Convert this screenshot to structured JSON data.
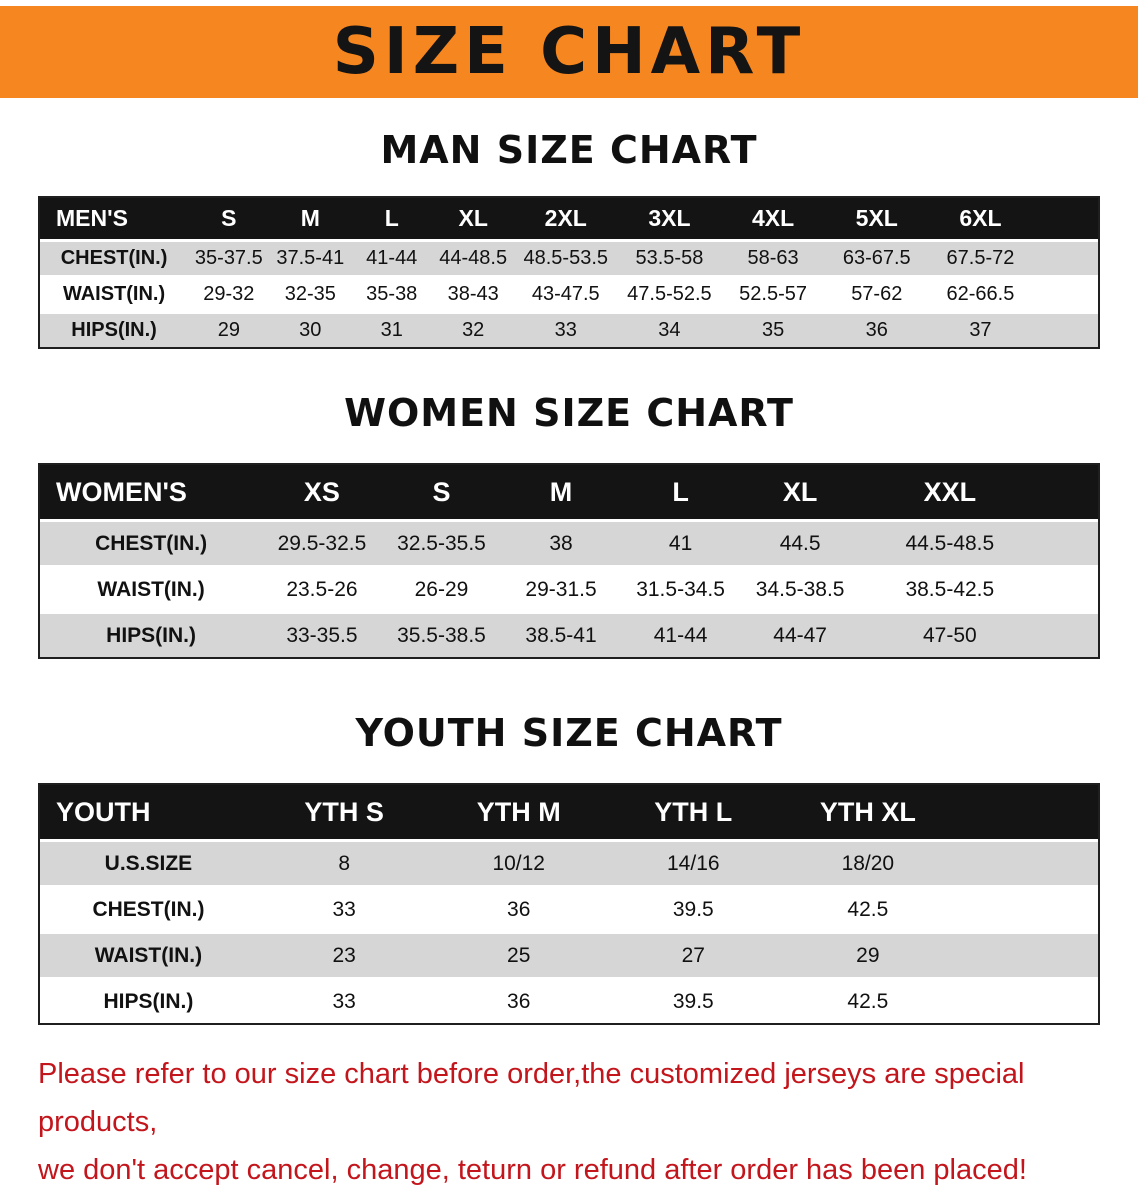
{
  "banner": {
    "title": "SIZE CHART"
  },
  "colors": {
    "banner_orange": "#f6861f",
    "table_header_black": "#141414",
    "row_gray": "#d6d6d6",
    "notice_red": "#c3161c"
  },
  "men": {
    "heading": "MAN SIZE CHART",
    "header": [
      "MEN'S",
      "S",
      "M",
      "L",
      "XL",
      "2XL",
      "3XL",
      "4XL",
      "5XL",
      "6XL"
    ],
    "rows": [
      [
        "CHEST(IN.)",
        "35-37.5",
        "37.5-41",
        "41-44",
        "44-48.5",
        "48.5-53.5",
        "53.5-58",
        "58-63",
        "63-67.5",
        "67.5-72"
      ],
      [
        "WAIST(IN.)",
        "29-32",
        "32-35",
        "35-38",
        "38-43",
        "43-47.5",
        "47.5-52.5",
        "52.5-57",
        "57-62",
        "62-66.5"
      ],
      [
        "HIPS(IN.)",
        "29",
        "30",
        "31",
        "32",
        "33",
        "34",
        "35",
        "36",
        "37"
      ]
    ]
  },
  "women": {
    "heading": "WOMEN SIZE CHART",
    "header": [
      "WOMEN'S",
      "XS",
      "S",
      "M",
      "L",
      "XL",
      "XXL"
    ],
    "rows": [
      [
        "CHEST(IN.)",
        "29.5-32.5",
        "32.5-35.5",
        "38",
        "41",
        "44.5",
        "44.5-48.5"
      ],
      [
        "WAIST(IN.)",
        "23.5-26",
        "26-29",
        "29-31.5",
        "31.5-34.5",
        "34.5-38.5",
        "38.5-42.5"
      ],
      [
        "HIPS(IN.)",
        "33-35.5",
        "35.5-38.5",
        "38.5-41",
        "41-44",
        "44-47",
        "47-50"
      ]
    ]
  },
  "youth": {
    "heading": "YOUTH SIZE CHART",
    "header": [
      "YOUTH",
      "YTH S",
      "YTH M",
      "YTH L",
      "YTH XL"
    ],
    "rows": [
      [
        "U.S.SIZE",
        "8",
        "10/12",
        "14/16",
        "18/20"
      ],
      [
        "CHEST(IN.)",
        "33",
        "36",
        "39.5",
        "42.5"
      ],
      [
        "WAIST(IN.)",
        "23",
        "25",
        "27",
        "29"
      ],
      [
        "HIPS(IN.)",
        "33",
        "36",
        "39.5",
        "42.5"
      ]
    ]
  },
  "notice": {
    "line1": "Please refer to our size chart before order,the customized jerseys are special products,",
    "line2": "we don't accept cancel, change, teturn or refund after order has been placed!"
  }
}
